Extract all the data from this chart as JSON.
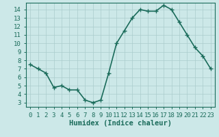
{
  "x": [
    0,
    1,
    2,
    3,
    4,
    5,
    6,
    7,
    8,
    9,
    10,
    11,
    12,
    13,
    14,
    15,
    16,
    17,
    18,
    19,
    20,
    21,
    22,
    23
  ],
  "y": [
    7.5,
    7.0,
    6.5,
    4.8,
    5.0,
    4.5,
    4.5,
    3.3,
    3.0,
    3.3,
    6.5,
    10.0,
    11.5,
    13.0,
    14.0,
    13.8,
    13.8,
    14.5,
    14.0,
    12.5,
    11.0,
    9.5,
    8.5,
    7.0
  ],
  "line_color": "#1a6b5a",
  "marker_color": "#1a6b5a",
  "bg_color": "#cce8e8",
  "grid_color": "#aacccc",
  "xlabel": "Humidex (Indice chaleur)",
  "xlim": [
    -0.5,
    23.5
  ],
  "ylim": [
    2.5,
    14.8
  ],
  "yticks": [
    3,
    4,
    5,
    6,
    7,
    8,
    9,
    10,
    11,
    12,
    13,
    14
  ],
  "xlabel_fontsize": 7.5,
  "tick_fontsize": 6.5,
  "line_width": 1.2,
  "marker_size": 4
}
